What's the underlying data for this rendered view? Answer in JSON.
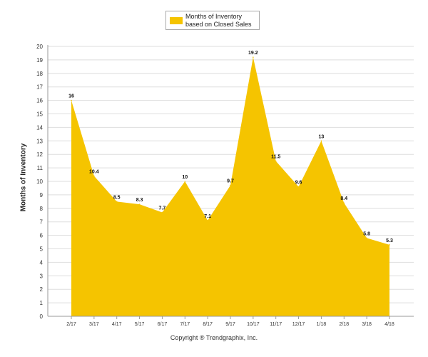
{
  "chart_data": {
    "type": "area",
    "ylabel": "Months of Inventory",
    "ylim": [
      0,
      20
    ],
    "y_ticks": [
      0,
      1,
      2,
      3,
      4,
      5,
      6,
      7,
      8,
      9,
      10,
      11,
      12,
      13,
      14,
      15,
      16,
      17,
      18,
      19,
      20
    ],
    "grid": true,
    "legend_position": "top-center",
    "categories": [
      "2/17",
      "3/17",
      "4/17",
      "5/17",
      "6/17",
      "7/17",
      "8/17",
      "9/17",
      "10/17",
      "11/17",
      "12/17",
      "1/18",
      "2/18",
      "3/18",
      "4/18"
    ],
    "series": [
      {
        "name": "Months of Inventory based on Closed Sales",
        "color": "#f5c400",
        "values": [
          16,
          10.4,
          8.5,
          8.3,
          7.7,
          10,
          7.1,
          9.7,
          19.2,
          11.5,
          9.6,
          13,
          8.4,
          5.8,
          5.3
        ],
        "labels": [
          "16",
          "10.4",
          "8.5",
          "8.3",
          "7.7",
          "10",
          "7.1",
          "9.7",
          "19.2",
          "11.5",
          "9.6",
          "13",
          "8.4",
          "5.8",
          "5.3"
        ]
      }
    ]
  },
  "footer": {
    "copyright": "Copyright ® Trendgraphix, Inc."
  }
}
